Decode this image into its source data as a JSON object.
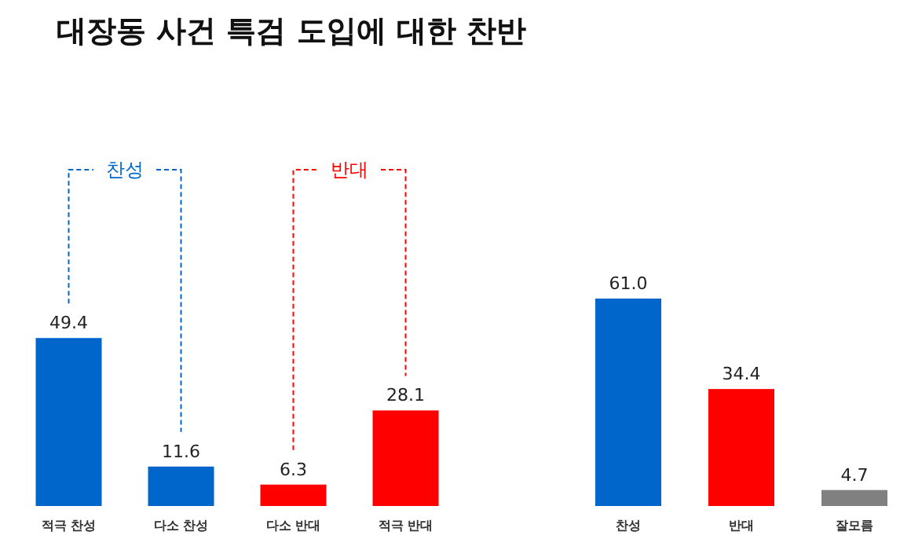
{
  "chart_data": [
    {
      "type": "bar",
      "title": "대장동 사건 특검 도입에 대한 찬반",
      "categories": [
        "적극 찬성",
        "다소 찬성",
        "다소 반대",
        "적극 반대"
      ],
      "values": [
        49.4,
        11.6,
        6.3,
        28.1
      ],
      "colors": [
        "#0066cc",
        "#0066cc",
        "#ff0000",
        "#ff0000"
      ],
      "data_labels": true,
      "annotations": [
        "찬성",
        "반대"
      ]
    },
    {
      "type": "bar",
      "categories": [
        "찬성",
        "반대",
        "잘모름"
      ],
      "values": [
        61.0,
        34.4,
        4.7
      ],
      "value_labels": [
        "61.0",
        "34.4",
        "4.7"
      ],
      "colors": [
        "#0066cc",
        "#ff0000",
        "#808080"
      ]
    }
  ]
}
